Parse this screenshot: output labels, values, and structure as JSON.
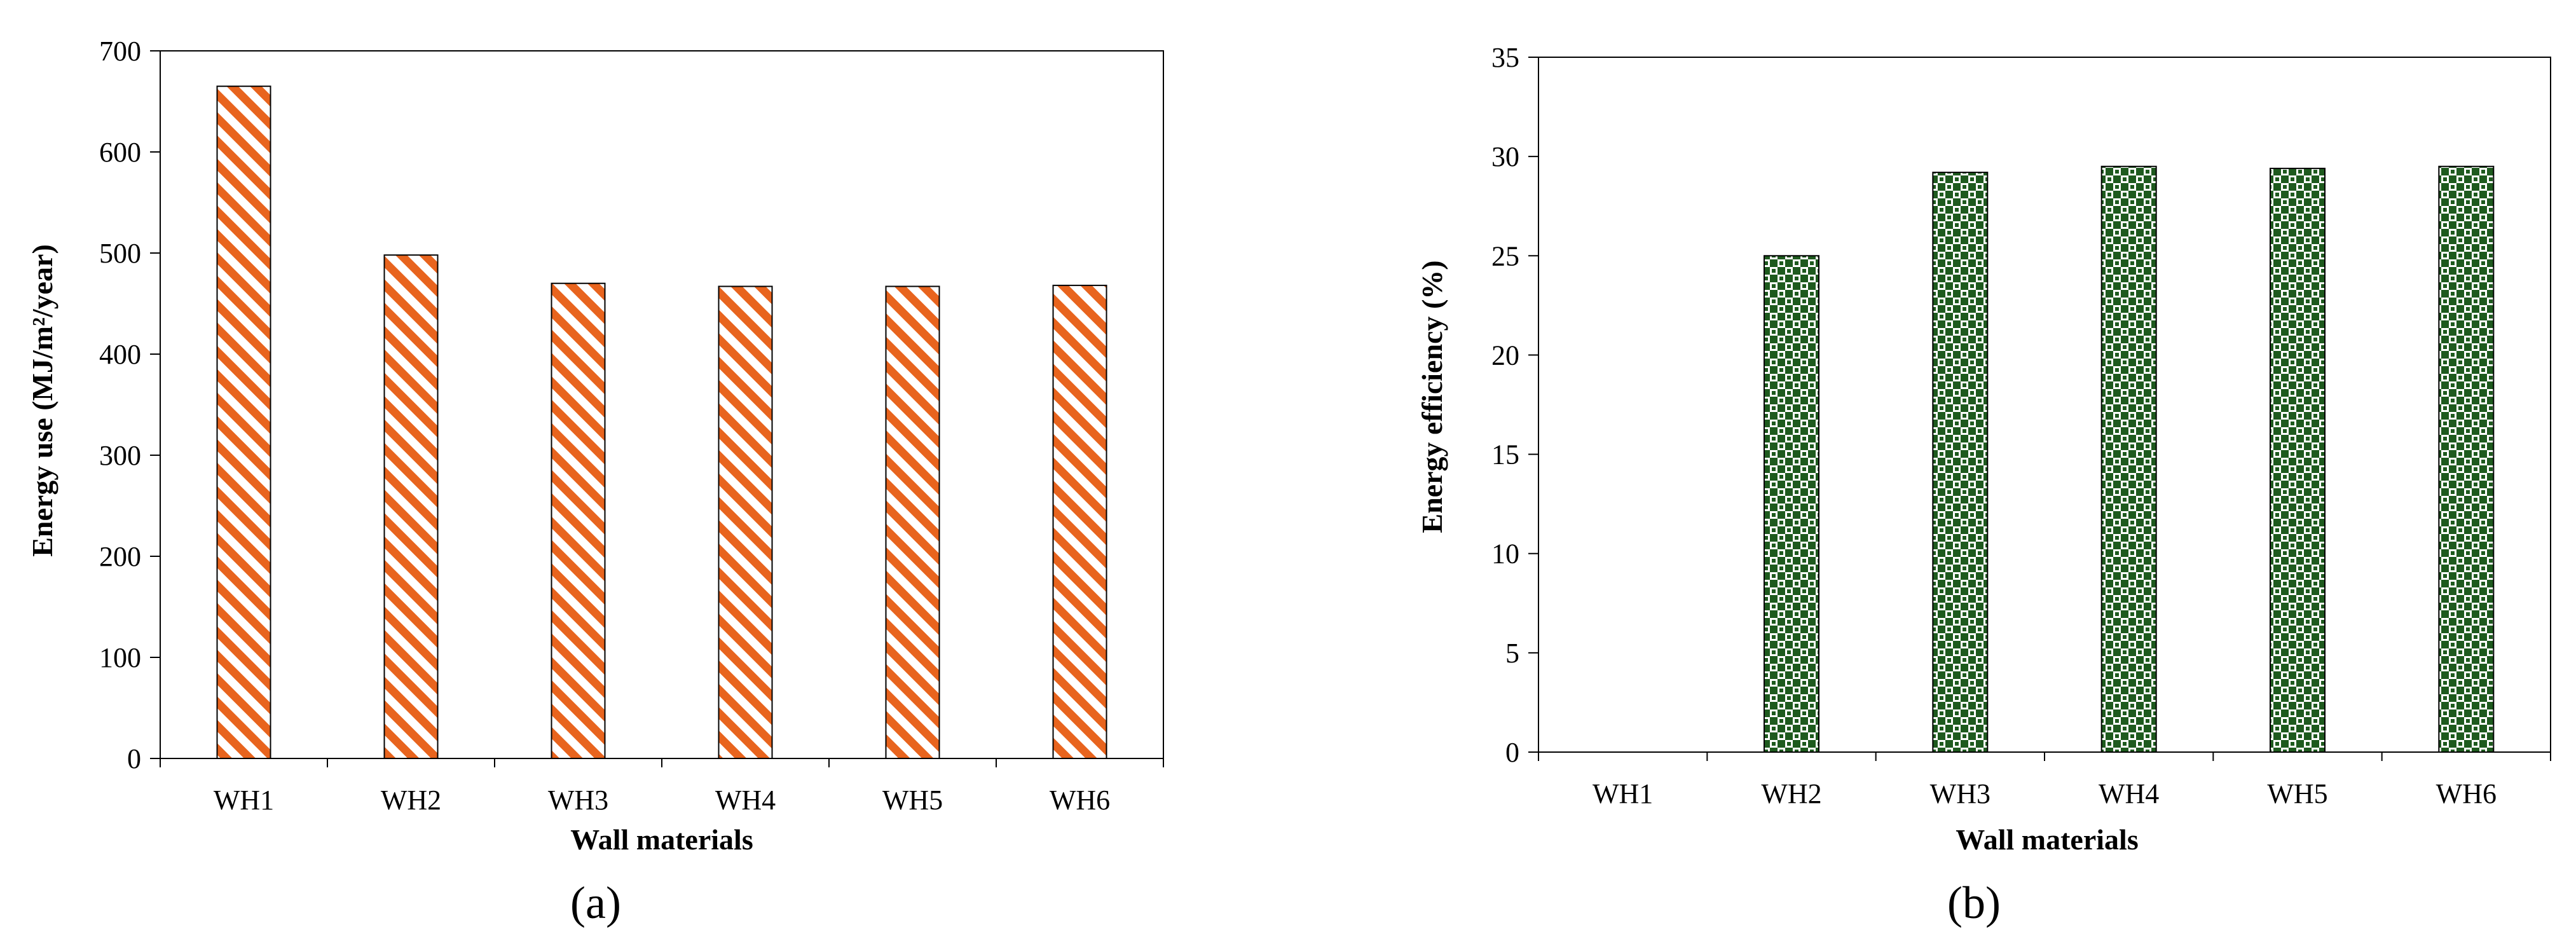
{
  "chart_data": [
    {
      "type": "bar",
      "panel_label": "(a)",
      "categories": [
        "WH1",
        "WH2",
        "WH3",
        "WH4",
        "WH5",
        "WH6"
      ],
      "values": [
        665,
        498,
        470,
        467,
        467,
        468
      ],
      "xlabel": "Wall materials",
      "ylabel": "Energy use (MJ/m²/year)",
      "ylim": [
        0,
        700
      ],
      "yticks": [
        0,
        100,
        200,
        300,
        400,
        500,
        600,
        700
      ],
      "grid": false,
      "bar_color": "#e8641e",
      "bar_pattern": "diagonal-stripes"
    },
    {
      "type": "bar",
      "panel_label": "(b)",
      "categories": [
        "WH1",
        "WH2",
        "WH3",
        "WH4",
        "WH5",
        "WH6"
      ],
      "values": [
        0,
        25,
        29.2,
        29.5,
        29.4,
        29.5
      ],
      "xlabel": "Wall materials",
      "ylabel": "Energy  efficiency (%)",
      "ylim": [
        0,
        35
      ],
      "yticks": [
        0,
        5,
        10,
        15,
        20,
        25,
        30,
        35
      ],
      "grid": false,
      "bar_color": "#1e5a1e",
      "bar_pattern": "checkerboard"
    }
  ]
}
